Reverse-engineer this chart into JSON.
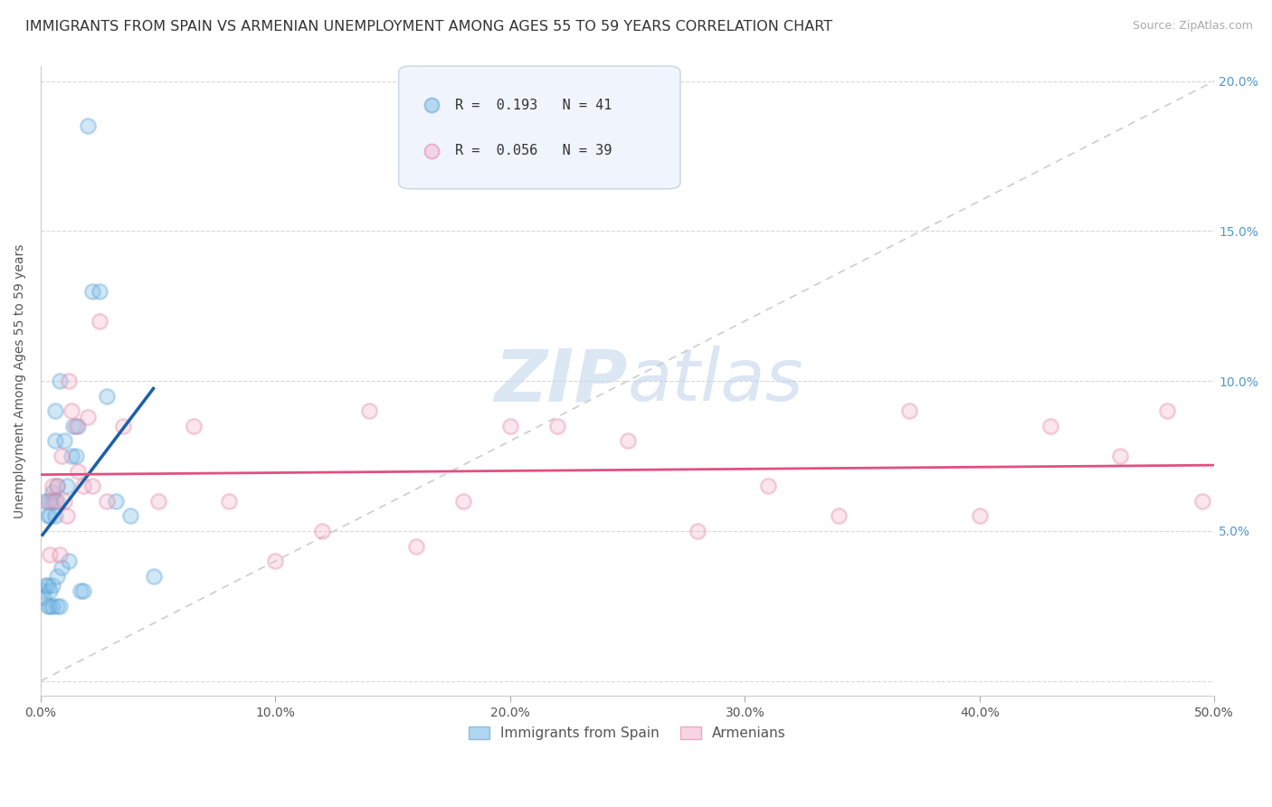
{
  "title": "IMMIGRANTS FROM SPAIN VS ARMENIAN UNEMPLOYMENT AMONG AGES 55 TO 59 YEARS CORRELATION CHART",
  "source": "Source: ZipAtlas.com",
  "ylabel": "Unemployment Among Ages 55 to 59 years",
  "xlim": [
    0,
    0.5
  ],
  "ylim": [
    -0.005,
    0.205
  ],
  "xticks": [
    0.0,
    0.1,
    0.2,
    0.3,
    0.4,
    0.5
  ],
  "yticks": [
    0.0,
    0.05,
    0.1,
    0.15,
    0.2
  ],
  "xticklabels": [
    "0.0%",
    "10.0%",
    "20.0%",
    "30.0%",
    "40.0%",
    "50.0%"
  ],
  "yticklabels_left": [
    "",
    "",
    "",
    "",
    ""
  ],
  "yticklabels_right": [
    "",
    "5.0%",
    "10.0%",
    "15.0%",
    "20.0%"
  ],
  "series1_label": "Immigrants from Spain",
  "series1_color": "#7bbde8",
  "series1_edge_color": "#5a9fd4",
  "series1_R": "0.193",
  "series1_N": "41",
  "series2_label": "Armenians",
  "series2_color": "#f4b8cf",
  "series2_edge_color": "#e080a0",
  "series2_R": "0.056",
  "series2_N": "39",
  "blue_line_color": "#1a5fa8",
  "pink_line_color": "#e05080",
  "diag_line_color": "#c8c8c8",
  "watermark_zip": "ZIP",
  "watermark_atlas": "atlas",
  "background_color": "#ffffff",
  "grid_color": "#d8d8d8",
  "scatter1_x": [
    0.0008,
    0.001,
    0.002,
    0.002,
    0.003,
    0.003,
    0.003,
    0.004,
    0.004,
    0.004,
    0.004,
    0.005,
    0.005,
    0.005,
    0.005,
    0.006,
    0.006,
    0.006,
    0.007,
    0.007,
    0.007,
    0.007,
    0.008,
    0.008,
    0.009,
    0.01,
    0.011,
    0.012,
    0.013,
    0.014,
    0.015,
    0.016,
    0.017,
    0.018,
    0.02,
    0.022,
    0.025,
    0.028,
    0.032,
    0.038,
    0.048
  ],
  "scatter1_y": [
    0.03,
    0.028,
    0.032,
    0.06,
    0.025,
    0.032,
    0.055,
    0.025,
    0.03,
    0.055,
    0.06,
    0.025,
    0.032,
    0.06,
    0.063,
    0.055,
    0.08,
    0.09,
    0.025,
    0.035,
    0.06,
    0.065,
    0.025,
    0.1,
    0.038,
    0.08,
    0.065,
    0.04,
    0.075,
    0.085,
    0.075,
    0.085,
    0.03,
    0.03,
    0.185,
    0.13,
    0.13,
    0.095,
    0.06,
    0.055,
    0.035
  ],
  "scatter2_x": [
    0.003,
    0.004,
    0.005,
    0.006,
    0.007,
    0.008,
    0.009,
    0.01,
    0.011,
    0.012,
    0.013,
    0.015,
    0.016,
    0.018,
    0.02,
    0.022,
    0.025,
    0.028,
    0.035,
    0.05,
    0.065,
    0.08,
    0.1,
    0.12,
    0.14,
    0.16,
    0.18,
    0.2,
    0.22,
    0.25,
    0.28,
    0.31,
    0.34,
    0.37,
    0.4,
    0.43,
    0.46,
    0.48,
    0.495
  ],
  "scatter2_y": [
    0.06,
    0.042,
    0.065,
    0.06,
    0.065,
    0.042,
    0.075,
    0.06,
    0.055,
    0.1,
    0.09,
    0.085,
    0.07,
    0.065,
    0.088,
    0.065,
    0.12,
    0.06,
    0.085,
    0.06,
    0.085,
    0.06,
    0.04,
    0.05,
    0.09,
    0.045,
    0.06,
    0.085,
    0.085,
    0.08,
    0.05,
    0.065,
    0.055,
    0.09,
    0.055,
    0.085,
    0.075,
    0.09,
    0.06
  ],
  "title_fontsize": 11.5,
  "axis_label_fontsize": 10,
  "tick_fontsize": 10,
  "legend_fontsize": 11,
  "source_fontsize": 9,
  "marker_size": 140,
  "marker_alpha": 0.35,
  "marker_linewidth": 1.8
}
